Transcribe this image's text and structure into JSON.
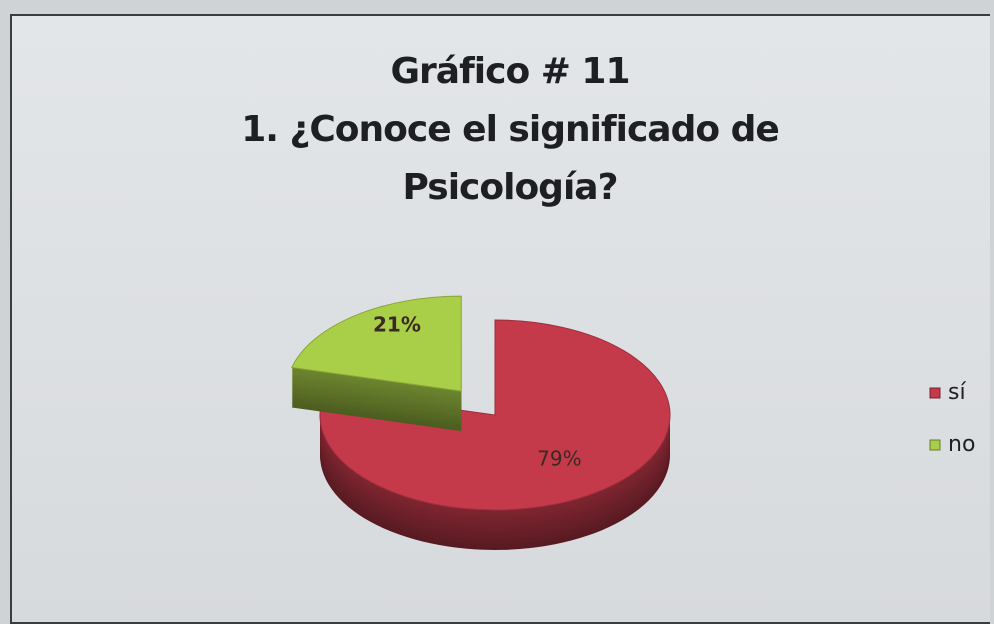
{
  "chart_data": {
    "type": "pie",
    "title": "Gráfico # 11",
    "subtitle": "1. ¿Conoce el significado de Psicología?",
    "categories": [
      "sí",
      "no"
    ],
    "values": [
      79,
      21
    ],
    "value_labels": [
      "79%",
      "21%"
    ],
    "colors": [
      "#c43a4b",
      "#a9cf48"
    ],
    "legend": "right"
  }
}
